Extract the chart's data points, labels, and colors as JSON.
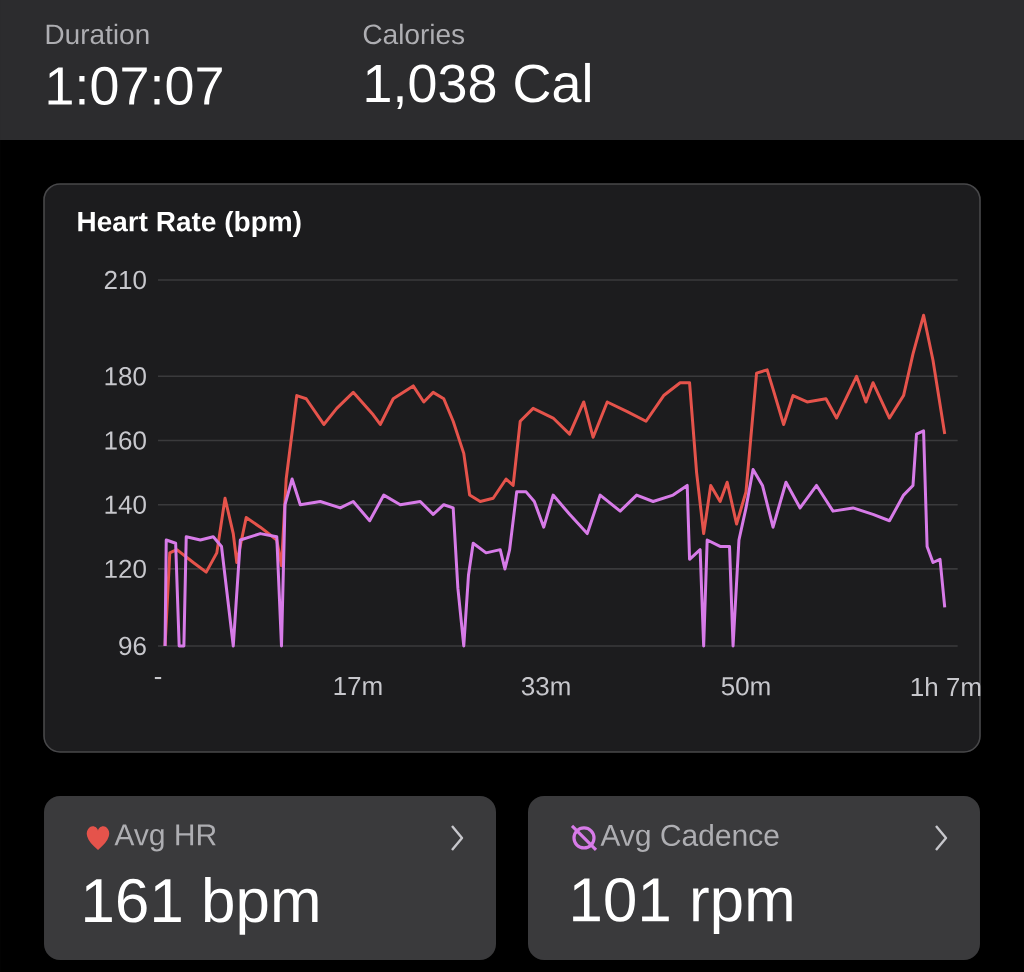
{
  "chart_data": {
    "type": "line",
    "title": "Heart Rate (bpm)",
    "xlim": [
      0,
      68
    ],
    "xticks": [
      {
        "value": 0,
        "label": "-"
      },
      {
        "value": 17,
        "label": "17m"
      },
      {
        "value": 33,
        "label": "33m"
      },
      {
        "value": 50,
        "label": "50m"
      },
      {
        "value": 67,
        "label": "1h 7m"
      }
    ],
    "ylim": [
      96,
      210
    ],
    "yticks": [
      96,
      120,
      140,
      160,
      180,
      210
    ],
    "grid": "y",
    "line_style": "solid",
    "series": [
      {
        "color": "#e5534b",
        "x": [
          0.6,
          1.0,
          1.6,
          3.0,
          4.1,
          5.0,
          5.7,
          6.4,
          6.7,
          7.5,
          8.7,
          10.1,
          10.5,
          10.9,
          11.8,
          12.6,
          14.1,
          15.2,
          16.6,
          18.3,
          18.9,
          20.0,
          21.7,
          22.6,
          23.4,
          24.3,
          25.1,
          26.0,
          26.5,
          27.4,
          28.5,
          29.6,
          30.2,
          30.8,
          31.9,
          33.6,
          35.0,
          36.2,
          37.0,
          38.2,
          39.9,
          41.5,
          43.0,
          44.4,
          45.2,
          45.8,
          46.4,
          47.0,
          47.8,
          48.4,
          49.2,
          50.0,
          50.9,
          51.8,
          52.3,
          53.2,
          54.0,
          55.2,
          56.8,
          57.7,
          59.4,
          60.2,
          60.8,
          62.2,
          63.4,
          64.2,
          65.1,
          65.9,
          66.9
        ],
        "values": [
          96,
          125,
          126,
          122,
          119,
          125,
          142,
          131,
          122,
          136,
          133,
          129,
          121,
          148,
          174,
          173,
          165,
          170,
          175,
          168,
          165,
          173,
          177,
          172,
          175,
          173,
          166,
          156,
          143,
          141,
          142,
          148,
          146,
          166,
          170,
          167,
          162,
          172,
          161,
          172,
          169,
          166,
          174,
          178,
          178,
          150,
          131,
          146,
          141,
          147,
          134,
          144,
          181,
          182,
          176,
          165,
          174,
          172,
          173,
          167,
          180,
          172,
          178,
          167,
          174,
          187,
          199,
          185,
          162
        ]
      },
      {
        "color": "#d77be8",
        "x": [
          0.6,
          0.7,
          1.5,
          1.8,
          2.2,
          2.4,
          3.6,
          4.7,
          5.4,
          6.4,
          7.0,
          8.7,
          10.1,
          10.5,
          10.8,
          11.4,
          12.1,
          13.8,
          15.5,
          16.6,
          18.0,
          19.2,
          20.6,
          22.3,
          23.4,
          24.3,
          25.1,
          25.5,
          26.0,
          26.4,
          26.8,
          27.9,
          29.1,
          29.5,
          29.9,
          30.5,
          31.3,
          32.0,
          32.8,
          33.6,
          35.0,
          36.5,
          37.6,
          39.3,
          40.7,
          42.1,
          43.8,
          45.0,
          45.2,
          46.1,
          46.4,
          46.7,
          47.8,
          48.6,
          48.9,
          49.4,
          50.0,
          50.6,
          51.4,
          52.3,
          53.4,
          54.6,
          56.0,
          57.4,
          59.1,
          60.8,
          62.2,
          63.4,
          64.2,
          64.5,
          65.1,
          65.4,
          65.9,
          66.5,
          66.9
        ],
        "values": [
          96,
          129,
          128,
          96,
          96,
          130,
          129,
          130,
          127,
          96,
          129,
          131,
          130,
          96,
          140,
          148,
          140,
          141,
          139,
          141,
          135,
          143,
          140,
          141,
          137,
          140,
          139,
          114,
          96,
          118,
          128,
          125,
          126,
          120,
          126,
          144,
          144,
          141,
          133,
          143,
          137,
          131,
          143,
          138,
          143,
          141,
          143,
          146,
          123,
          126,
          96,
          129,
          127,
          127,
          96,
          129,
          139,
          151,
          146,
          133,
          147,
          139,
          146,
          138,
          139,
          137,
          135,
          143,
          146,
          162,
          163,
          127,
          122,
          123,
          108
        ]
      }
    ],
    "annotations": [
      "Duration",
      "1:07:07",
      "Calories",
      "1,038 Cal",
      "Avg HR",
      "161 bpm",
      "Avg Cadence",
      "101 rpm"
    ]
  }
}
